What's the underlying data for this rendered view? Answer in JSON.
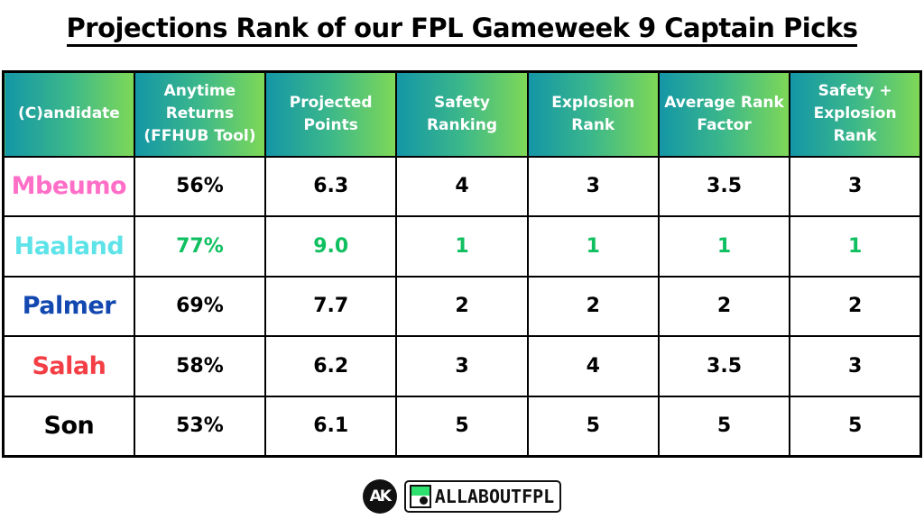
{
  "title": "Projections Rank of our FPL Gameweek 9 Captain Picks",
  "table": {
    "headers": [
      "(C)andidate",
      "Anytime Returns (FFHUB Tool)",
      "Projected Points",
      "Safety Ranking",
      "Explosion Rank",
      "Average Rank Factor",
      "Safety + Explosion Rank"
    ],
    "rows": [
      {
        "name": "Mbeumo",
        "name_color": "#ff6ec7",
        "value_color": "#000000",
        "anytime": "56%",
        "projected": "6.3",
        "safety": "4",
        "explosion": "3",
        "average": "3.5",
        "combined": "3"
      },
      {
        "name": "Haaland",
        "name_color": "#5ee3e8",
        "value_color": "#10c060",
        "anytime": "77%",
        "projected": "9.0",
        "safety": "1",
        "explosion": "1",
        "average": "1",
        "combined": "1"
      },
      {
        "name": "Palmer",
        "name_color": "#1248b0",
        "value_color": "#000000",
        "anytime": "69%",
        "projected": "7.7",
        "safety": "2",
        "explosion": "2",
        "average": "2",
        "combined": "2"
      },
      {
        "name": "Salah",
        "name_color": "#f43e45",
        "value_color": "#000000",
        "anytime": "58%",
        "projected": "6.2",
        "safety": "3",
        "explosion": "4",
        "average": "3.5",
        "combined": "3"
      },
      {
        "name": "Son",
        "name_color": "#000000",
        "value_color": "#000000",
        "anytime": "53%",
        "projected": "6.1",
        "safety": "5",
        "explosion": "5",
        "average": "5",
        "combined": "5"
      }
    ]
  },
  "colors": {
    "header_gradient_start": "#1496a6",
    "header_gradient_end": "#7ed857",
    "highlight_green": "#10c060"
  },
  "footer": {
    "logo_initials": "AK",
    "brand_name": "ALLABOUTFPL"
  },
  "chart_data": {
    "type": "table",
    "title": "Projections Rank of our FPL Gameweek 9 Captain Picks",
    "columns": [
      "(C)andidate",
      "Anytime Returns (FFHUB Tool)",
      "Projected Points",
      "Safety Ranking",
      "Explosion Rank",
      "Average Rank Factor",
      "Safety + Explosion Rank"
    ],
    "rows": [
      [
        "Mbeumo",
        "56%",
        6.3,
        4,
        3,
        3.5,
        3
      ],
      [
        "Haaland",
        "77%",
        9.0,
        1,
        1,
        1,
        1
      ],
      [
        "Palmer",
        "69%",
        7.7,
        2,
        2,
        2,
        2
      ],
      [
        "Salah",
        "58%",
        6.2,
        3,
        4,
        3.5,
        3
      ],
      [
        "Son",
        "53%",
        6.1,
        5,
        5,
        5,
        5
      ]
    ],
    "highlight": {
      "row": "Haaland",
      "color": "#10c060"
    }
  }
}
